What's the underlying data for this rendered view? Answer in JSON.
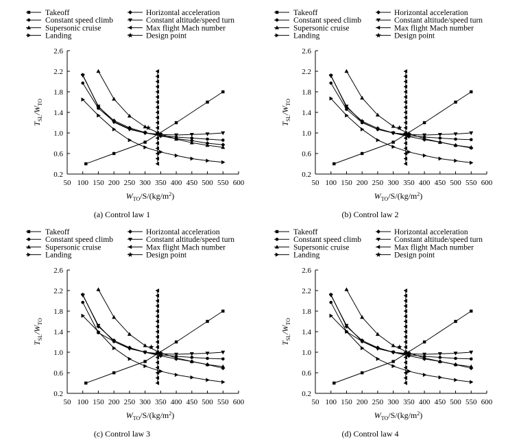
{
  "figure": {
    "legend_labels": {
      "takeoff": "Takeoff",
      "climb": "Constant speed climb",
      "cruise": "Supersonic cruise",
      "landing": "Landing",
      "horiz": "Horizontal acceleration",
      "turn": "Constant altitude/speed turn",
      "mach": "Max flight Mach number",
      "design": "Design point"
    },
    "ylabel": {
      "main": "T",
      "sub1": "SL",
      "mid": "/W",
      "sub2": "TO"
    },
    "xlabel": {
      "main": "W",
      "sub1": "TO",
      "rest": "/S/(kg/m",
      "sup": "2",
      "close": ")"
    }
  },
  "chart_data": [
    {
      "type": "line",
      "caption": "(a) Control law 1",
      "xlim": [
        50,
        600
      ],
      "ylim": [
        0.2,
        2.6
      ],
      "xticks": [
        50,
        100,
        150,
        200,
        250,
        300,
        350,
        400,
        450,
        500,
        550,
        600
      ],
      "yticks": [
        "0.2",
        "0.6",
        "1.0",
        "1.4",
        "1.8",
        "2.2",
        "2.6"
      ],
      "grid": false,
      "legend": "top",
      "series": [
        {
          "key": "takeoff",
          "x": [
            110,
            200,
            300,
            400,
            500,
            550
          ],
          "y": [
            0.4,
            0.6,
            0.82,
            1.2,
            1.6,
            1.8
          ]
        },
        {
          "key": "climb",
          "x": [
            100,
            150,
            200,
            250,
            300,
            350,
            400,
            450,
            500,
            550
          ],
          "y": [
            1.97,
            1.48,
            1.22,
            1.08,
            1.0,
            0.95,
            0.92,
            0.9,
            0.88,
            0.86
          ]
        },
        {
          "key": "cruise",
          "x": [
            150,
            200,
            250,
            300,
            350,
            400,
            450,
            500,
            550
          ],
          "y": [
            2.2,
            1.66,
            1.33,
            1.12,
            0.98,
            0.88,
            0.81,
            0.76,
            0.72
          ]
        },
        {
          "key": "landing",
          "x": [
            100,
            150,
            200,
            250,
            300,
            350,
            400,
            450,
            500,
            550
          ],
          "y": [
            1.65,
            1.34,
            1.07,
            0.86,
            0.72,
            0.63,
            0.56,
            0.5,
            0.46,
            0.43
          ]
        },
        {
          "key": "horiz",
          "x": [
            100,
            150,
            200,
            250,
            300,
            350,
            400,
            450,
            500,
            550
          ],
          "y": [
            2.13,
            1.51,
            1.24,
            1.1,
            1.01,
            0.94,
            0.89,
            0.85,
            0.8,
            0.77
          ]
        },
        {
          "key": "turn",
          "x": [
            100,
            150,
            200,
            250,
            300,
            350,
            400,
            450,
            500,
            550
          ],
          "y": [
            2.12,
            1.52,
            1.21,
            1.07,
            1.0,
            0.97,
            0.96,
            0.97,
            0.98,
            1.0
          ]
        },
        {
          "key": "mach",
          "x": [
            340,
            340,
            340,
            340,
            340,
            340,
            340,
            340,
            340,
            340,
            340,
            340,
            340,
            340,
            340,
            340,
            340,
            340,
            340
          ],
          "y": [
            0.4,
            0.5,
            0.6,
            0.7,
            0.8,
            0.9,
            1.0,
            1.1,
            1.2,
            1.3,
            1.4,
            1.5,
            1.6,
            1.7,
            1.8,
            1.9,
            2.0,
            2.1,
            2.2
          ]
        },
        {
          "key": "design",
          "x": [
            310,
            340
          ],
          "y": [
            1.1,
            0.99
          ]
        }
      ]
    },
    {
      "type": "line",
      "caption": "(b) Control law 2",
      "xlim": [
        50,
        600
      ],
      "ylim": [
        0.2,
        2.6
      ],
      "xticks": [
        50,
        100,
        150,
        200,
        250,
        300,
        350,
        400,
        450,
        500,
        550,
        600
      ],
      "yticks": [
        "0.2",
        "0.6",
        "1.0",
        "1.4",
        "1.8",
        "2.2",
        "2.6"
      ],
      "grid": false,
      "legend": "top",
      "series": [
        {
          "key": "takeoff",
          "x": [
            110,
            200,
            300,
            400,
            500,
            550
          ],
          "y": [
            0.4,
            0.6,
            0.82,
            1.2,
            1.6,
            1.8
          ]
        },
        {
          "key": "climb",
          "x": [
            100,
            150,
            200,
            250,
            300,
            350,
            400,
            450,
            500,
            550
          ],
          "y": [
            1.97,
            1.46,
            1.2,
            1.07,
            1.0,
            0.95,
            0.92,
            0.9,
            0.88,
            0.87
          ]
        },
        {
          "key": "cruise",
          "x": [
            150,
            200,
            250,
            300,
            350,
            400,
            450,
            500,
            550
          ],
          "y": [
            2.2,
            1.68,
            1.35,
            1.13,
            0.99,
            0.89,
            0.82,
            0.76,
            0.72
          ]
        },
        {
          "key": "landing",
          "x": [
            100,
            150,
            200,
            250,
            300,
            350,
            400,
            450,
            500,
            550
          ],
          "y": [
            1.67,
            1.34,
            1.07,
            0.86,
            0.73,
            0.63,
            0.56,
            0.5,
            0.46,
            0.42
          ]
        },
        {
          "key": "horiz",
          "x": [
            100,
            150,
            200,
            250,
            300,
            350,
            400,
            450,
            500,
            550
          ],
          "y": [
            2.12,
            1.5,
            1.23,
            1.09,
            1.0,
            0.93,
            0.87,
            0.82,
            0.76,
            0.71
          ]
        },
        {
          "key": "turn",
          "x": [
            100,
            150,
            200,
            250,
            300,
            350,
            400,
            450,
            500,
            550
          ],
          "y": [
            2.11,
            1.52,
            1.21,
            1.07,
            1.0,
            0.97,
            0.96,
            0.97,
            0.98,
            1.0
          ]
        },
        {
          "key": "mach",
          "x": [
            340,
            340,
            340,
            340,
            340,
            340,
            340,
            340,
            340,
            340,
            340,
            340,
            340,
            340,
            340,
            340,
            340,
            340,
            340
          ],
          "y": [
            0.4,
            0.5,
            0.6,
            0.7,
            0.8,
            0.9,
            1.0,
            1.1,
            1.2,
            1.3,
            1.4,
            1.5,
            1.6,
            1.7,
            1.8,
            1.9,
            2.0,
            2.1,
            2.2
          ]
        },
        {
          "key": "design",
          "x": [
            320,
            340
          ],
          "y": [
            1.1,
            0.98
          ]
        }
      ]
    },
    {
      "type": "line",
      "caption": "(c) Control law 3",
      "xlim": [
        50,
        600
      ],
      "ylim": [
        0.2,
        2.6
      ],
      "xticks": [
        50,
        100,
        150,
        200,
        250,
        300,
        350,
        400,
        450,
        500,
        550,
        600
      ],
      "yticks": [
        "0.2",
        "0.6",
        "1.0",
        "1.4",
        "1.8",
        "2.2",
        "2.6"
      ],
      "grid": false,
      "legend": "top",
      "series": [
        {
          "key": "takeoff",
          "x": [
            110,
            200,
            300,
            400,
            500,
            550
          ],
          "y": [
            0.4,
            0.6,
            0.82,
            1.2,
            1.6,
            1.8
          ]
        },
        {
          "key": "climb",
          "x": [
            100,
            150,
            200,
            250,
            300,
            350,
            400,
            450,
            500,
            550
          ],
          "y": [
            1.97,
            1.38,
            1.21,
            1.08,
            1.0,
            0.95,
            0.92,
            0.9,
            0.88,
            0.87
          ]
        },
        {
          "key": "cruise",
          "x": [
            150,
            200,
            250,
            300,
            350,
            400,
            450,
            500,
            550
          ],
          "y": [
            2.22,
            1.68,
            1.35,
            1.13,
            0.99,
            0.89,
            0.82,
            0.76,
            0.72
          ]
        },
        {
          "key": "landing",
          "x": [
            100,
            150,
            200,
            250,
            300,
            350,
            400,
            450,
            500,
            550
          ],
          "y": [
            1.71,
            1.4,
            1.08,
            0.87,
            0.73,
            0.63,
            0.56,
            0.51,
            0.46,
            0.42
          ]
        },
        {
          "key": "horiz",
          "x": [
            100,
            150,
            200,
            250,
            300,
            350,
            400,
            450,
            500,
            550
          ],
          "y": [
            2.12,
            1.5,
            1.23,
            1.09,
            1.0,
            0.93,
            0.87,
            0.82,
            0.76,
            0.69
          ]
        },
        {
          "key": "turn",
          "x": [
            100,
            150,
            200,
            250,
            300,
            350,
            400,
            450,
            500,
            550
          ],
          "y": [
            2.11,
            1.52,
            1.21,
            1.07,
            1.0,
            0.97,
            0.96,
            0.97,
            0.98,
            1.0
          ]
        },
        {
          "key": "mach",
          "x": [
            340,
            340,
            340,
            340,
            340,
            340,
            340,
            340,
            340,
            340,
            340,
            340,
            340,
            340,
            340,
            340,
            340,
            340,
            340
          ],
          "y": [
            0.4,
            0.5,
            0.6,
            0.7,
            0.8,
            0.9,
            1.0,
            1.1,
            1.2,
            1.3,
            1.4,
            1.5,
            1.6,
            1.7,
            1.8,
            1.9,
            2.0,
            2.1,
            2.2
          ]
        },
        {
          "key": "design",
          "x": [
            320,
            340
          ],
          "y": [
            1.1,
            0.99
          ]
        }
      ]
    },
    {
      "type": "line",
      "caption": "(d) Control law 4",
      "xlim": [
        50,
        600
      ],
      "ylim": [
        0.2,
        2.6
      ],
      "xticks": [
        50,
        100,
        150,
        200,
        250,
        300,
        350,
        400,
        450,
        500,
        550,
        600
      ],
      "yticks": [
        "0.2",
        "0.6",
        "1.0",
        "1.4",
        "1.8",
        "2.2",
        "2.6"
      ],
      "grid": false,
      "legend": "top",
      "series": [
        {
          "key": "takeoff",
          "x": [
            110,
            200,
            300,
            400,
            500,
            550
          ],
          "y": [
            0.4,
            0.6,
            0.82,
            1.2,
            1.6,
            1.8
          ]
        },
        {
          "key": "climb",
          "x": [
            100,
            150,
            200,
            250,
            300,
            350,
            400,
            450,
            500,
            550
          ],
          "y": [
            1.97,
            1.4,
            1.21,
            1.08,
            1.0,
            0.95,
            0.92,
            0.9,
            0.88,
            0.87
          ]
        },
        {
          "key": "cruise",
          "x": [
            150,
            200,
            250,
            300,
            350,
            400,
            450,
            500,
            550
          ],
          "y": [
            2.22,
            1.68,
            1.35,
            1.13,
            0.99,
            0.89,
            0.82,
            0.76,
            0.72
          ]
        },
        {
          "key": "landing",
          "x": [
            100,
            150,
            200,
            250,
            300,
            350,
            400,
            450,
            500,
            550
          ],
          "y": [
            1.71,
            1.4,
            1.08,
            0.87,
            0.73,
            0.63,
            0.56,
            0.51,
            0.46,
            0.42
          ]
        },
        {
          "key": "horiz",
          "x": [
            100,
            150,
            200,
            250,
            300,
            350,
            400,
            450,
            500,
            550
          ],
          "y": [
            2.12,
            1.5,
            1.23,
            1.09,
            1.0,
            0.93,
            0.87,
            0.82,
            0.76,
            0.69
          ]
        },
        {
          "key": "turn",
          "x": [
            100,
            150,
            200,
            250,
            300,
            350,
            400,
            450,
            500,
            550
          ],
          "y": [
            2.11,
            1.52,
            1.21,
            1.07,
            1.0,
            0.97,
            0.96,
            0.97,
            0.98,
            1.0
          ]
        },
        {
          "key": "mach",
          "x": [
            340,
            340,
            340,
            340,
            340,
            340,
            340,
            340,
            340,
            340,
            340,
            340,
            340,
            340,
            340,
            340,
            340,
            340,
            340
          ],
          "y": [
            0.4,
            0.5,
            0.6,
            0.7,
            0.8,
            0.9,
            1.0,
            1.1,
            1.2,
            1.3,
            1.4,
            1.5,
            1.6,
            1.7,
            1.8,
            1.9,
            2.0,
            2.1,
            2.2
          ]
        },
        {
          "key": "design",
          "x": [
            320,
            340
          ],
          "y": [
            1.1,
            0.99
          ]
        }
      ]
    }
  ]
}
